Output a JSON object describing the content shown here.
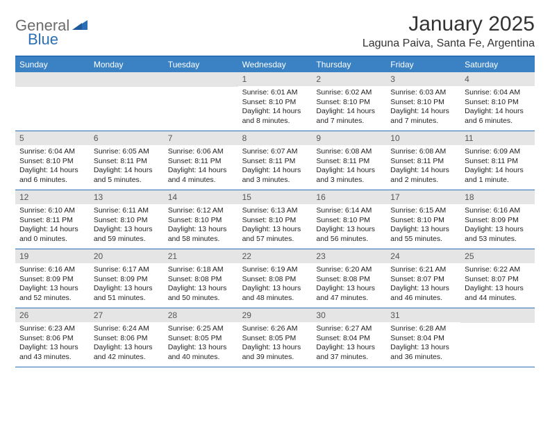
{
  "logo": {
    "text1": "General",
    "text2": "Blue"
  },
  "title": "January 2025",
  "location": "Laguna Paiva, Santa Fe, Argentina",
  "dayNames": [
    "Sunday",
    "Monday",
    "Tuesday",
    "Wednesday",
    "Thursday",
    "Friday",
    "Saturday"
  ],
  "colors": {
    "headerBlue": "#3b82c4",
    "borderBlue": "#2a6fb5",
    "dayNumBg": "#e5e5e5",
    "text": "#222222",
    "logoGray": "#6b6b6b"
  },
  "weeks": [
    [
      {
        "n": "",
        "sunrise": "",
        "sunset": "",
        "daylight": ""
      },
      {
        "n": "",
        "sunrise": "",
        "sunset": "",
        "daylight": ""
      },
      {
        "n": "",
        "sunrise": "",
        "sunset": "",
        "daylight": ""
      },
      {
        "n": "1",
        "sunrise": "Sunrise: 6:01 AM",
        "sunset": "Sunset: 8:10 PM",
        "daylight": "Daylight: 14 hours and 8 minutes."
      },
      {
        "n": "2",
        "sunrise": "Sunrise: 6:02 AM",
        "sunset": "Sunset: 8:10 PM",
        "daylight": "Daylight: 14 hours and 7 minutes."
      },
      {
        "n": "3",
        "sunrise": "Sunrise: 6:03 AM",
        "sunset": "Sunset: 8:10 PM",
        "daylight": "Daylight: 14 hours and 7 minutes."
      },
      {
        "n": "4",
        "sunrise": "Sunrise: 6:04 AM",
        "sunset": "Sunset: 8:10 PM",
        "daylight": "Daylight: 14 hours and 6 minutes."
      }
    ],
    [
      {
        "n": "5",
        "sunrise": "Sunrise: 6:04 AM",
        "sunset": "Sunset: 8:10 PM",
        "daylight": "Daylight: 14 hours and 6 minutes."
      },
      {
        "n": "6",
        "sunrise": "Sunrise: 6:05 AM",
        "sunset": "Sunset: 8:11 PM",
        "daylight": "Daylight: 14 hours and 5 minutes."
      },
      {
        "n": "7",
        "sunrise": "Sunrise: 6:06 AM",
        "sunset": "Sunset: 8:11 PM",
        "daylight": "Daylight: 14 hours and 4 minutes."
      },
      {
        "n": "8",
        "sunrise": "Sunrise: 6:07 AM",
        "sunset": "Sunset: 8:11 PM",
        "daylight": "Daylight: 14 hours and 3 minutes."
      },
      {
        "n": "9",
        "sunrise": "Sunrise: 6:08 AM",
        "sunset": "Sunset: 8:11 PM",
        "daylight": "Daylight: 14 hours and 3 minutes."
      },
      {
        "n": "10",
        "sunrise": "Sunrise: 6:08 AM",
        "sunset": "Sunset: 8:11 PM",
        "daylight": "Daylight: 14 hours and 2 minutes."
      },
      {
        "n": "11",
        "sunrise": "Sunrise: 6:09 AM",
        "sunset": "Sunset: 8:11 PM",
        "daylight": "Daylight: 14 hours and 1 minute."
      }
    ],
    [
      {
        "n": "12",
        "sunrise": "Sunrise: 6:10 AM",
        "sunset": "Sunset: 8:11 PM",
        "daylight": "Daylight: 14 hours and 0 minutes."
      },
      {
        "n": "13",
        "sunrise": "Sunrise: 6:11 AM",
        "sunset": "Sunset: 8:10 PM",
        "daylight": "Daylight: 13 hours and 59 minutes."
      },
      {
        "n": "14",
        "sunrise": "Sunrise: 6:12 AM",
        "sunset": "Sunset: 8:10 PM",
        "daylight": "Daylight: 13 hours and 58 minutes."
      },
      {
        "n": "15",
        "sunrise": "Sunrise: 6:13 AM",
        "sunset": "Sunset: 8:10 PM",
        "daylight": "Daylight: 13 hours and 57 minutes."
      },
      {
        "n": "16",
        "sunrise": "Sunrise: 6:14 AM",
        "sunset": "Sunset: 8:10 PM",
        "daylight": "Daylight: 13 hours and 56 minutes."
      },
      {
        "n": "17",
        "sunrise": "Sunrise: 6:15 AM",
        "sunset": "Sunset: 8:10 PM",
        "daylight": "Daylight: 13 hours and 55 minutes."
      },
      {
        "n": "18",
        "sunrise": "Sunrise: 6:16 AM",
        "sunset": "Sunset: 8:09 PM",
        "daylight": "Daylight: 13 hours and 53 minutes."
      }
    ],
    [
      {
        "n": "19",
        "sunrise": "Sunrise: 6:16 AM",
        "sunset": "Sunset: 8:09 PM",
        "daylight": "Daylight: 13 hours and 52 minutes."
      },
      {
        "n": "20",
        "sunrise": "Sunrise: 6:17 AM",
        "sunset": "Sunset: 8:09 PM",
        "daylight": "Daylight: 13 hours and 51 minutes."
      },
      {
        "n": "21",
        "sunrise": "Sunrise: 6:18 AM",
        "sunset": "Sunset: 8:08 PM",
        "daylight": "Daylight: 13 hours and 50 minutes."
      },
      {
        "n": "22",
        "sunrise": "Sunrise: 6:19 AM",
        "sunset": "Sunset: 8:08 PM",
        "daylight": "Daylight: 13 hours and 48 minutes."
      },
      {
        "n": "23",
        "sunrise": "Sunrise: 6:20 AM",
        "sunset": "Sunset: 8:08 PM",
        "daylight": "Daylight: 13 hours and 47 minutes."
      },
      {
        "n": "24",
        "sunrise": "Sunrise: 6:21 AM",
        "sunset": "Sunset: 8:07 PM",
        "daylight": "Daylight: 13 hours and 46 minutes."
      },
      {
        "n": "25",
        "sunrise": "Sunrise: 6:22 AM",
        "sunset": "Sunset: 8:07 PM",
        "daylight": "Daylight: 13 hours and 44 minutes."
      }
    ],
    [
      {
        "n": "26",
        "sunrise": "Sunrise: 6:23 AM",
        "sunset": "Sunset: 8:06 PM",
        "daylight": "Daylight: 13 hours and 43 minutes."
      },
      {
        "n": "27",
        "sunrise": "Sunrise: 6:24 AM",
        "sunset": "Sunset: 8:06 PM",
        "daylight": "Daylight: 13 hours and 42 minutes."
      },
      {
        "n": "28",
        "sunrise": "Sunrise: 6:25 AM",
        "sunset": "Sunset: 8:05 PM",
        "daylight": "Daylight: 13 hours and 40 minutes."
      },
      {
        "n": "29",
        "sunrise": "Sunrise: 6:26 AM",
        "sunset": "Sunset: 8:05 PM",
        "daylight": "Daylight: 13 hours and 39 minutes."
      },
      {
        "n": "30",
        "sunrise": "Sunrise: 6:27 AM",
        "sunset": "Sunset: 8:04 PM",
        "daylight": "Daylight: 13 hours and 37 minutes."
      },
      {
        "n": "31",
        "sunrise": "Sunrise: 6:28 AM",
        "sunset": "Sunset: 8:04 PM",
        "daylight": "Daylight: 13 hours and 36 minutes."
      },
      {
        "n": "",
        "sunrise": "",
        "sunset": "",
        "daylight": ""
      }
    ]
  ]
}
